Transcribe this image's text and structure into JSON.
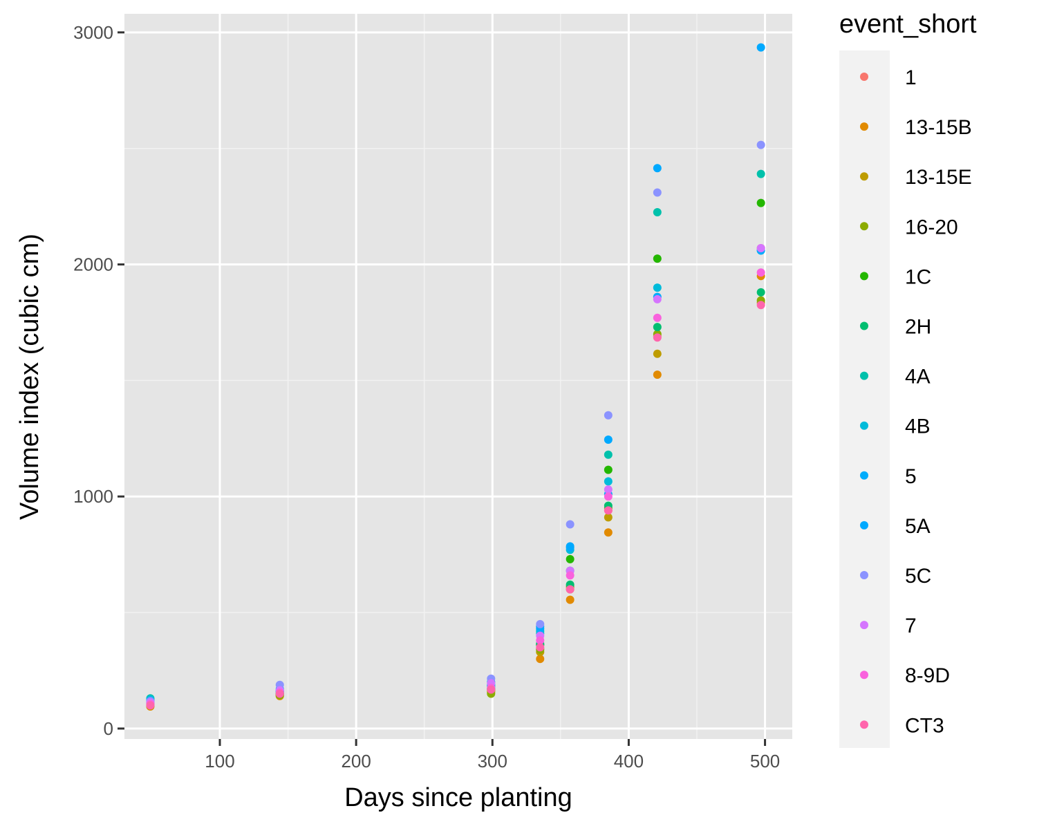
{
  "chart_data": {
    "type": "scatter",
    "xlabel": "Days since planting",
    "ylabel": "Volume index (cubic cm)",
    "xlim": [
      30,
      520
    ],
    "ylim": [
      -45,
      3080
    ],
    "x_ticks": [
      100,
      200,
      300,
      400,
      500
    ],
    "y_ticks": [
      0,
      1000,
      2000,
      3000
    ],
    "x_minor_grid": [
      150,
      250,
      350,
      450
    ],
    "y_minor_grid": [
      500,
      1500,
      2500
    ],
    "grid": true,
    "legend": {
      "title": "event_short",
      "position": "right"
    },
    "series": [
      {
        "name": "1",
        "color": "#F8766D",
        "points": [
          [
            49,
            100
          ],
          [
            144,
            148
          ],
          [
            299,
            165
          ],
          [
            335,
            345
          ],
          [
            357,
            615
          ],
          [
            385,
            940
          ],
          [
            421,
            1690
          ],
          [
            497,
            2070
          ]
        ]
      },
      {
        "name": "13-15B",
        "color": "#E18A00",
        "points": [
          [
            49,
            95
          ],
          [
            144,
            140
          ],
          [
            299,
            158
          ],
          [
            335,
            300
          ],
          [
            357,
            555
          ],
          [
            385,
            845
          ],
          [
            421,
            1525
          ],
          [
            497,
            1950
          ]
        ]
      },
      {
        "name": "13-15E",
        "color": "#BE9C00",
        "points": [
          [
            49,
            98
          ],
          [
            144,
            142
          ],
          [
            299,
            162
          ],
          [
            335,
            330
          ],
          [
            357,
            600
          ],
          [
            385,
            910
          ],
          [
            421,
            1615
          ],
          [
            497,
            1835
          ]
        ]
      },
      {
        "name": "16-20",
        "color": "#8CAB00",
        "points": [
          [
            49,
            102
          ],
          [
            144,
            145
          ],
          [
            299,
            150
          ],
          [
            335,
            340
          ],
          [
            357,
            610
          ],
          [
            385,
            950
          ],
          [
            421,
            1700
          ],
          [
            497,
            1845
          ]
        ]
      },
      {
        "name": "1C",
        "color": "#24B700",
        "points": [
          [
            49,
            108
          ],
          [
            144,
            150
          ],
          [
            299,
            170
          ],
          [
            335,
            360
          ],
          [
            357,
            730
          ],
          [
            385,
            1115
          ],
          [
            421,
            2025
          ],
          [
            497,
            2265
          ]
        ]
      },
      {
        "name": "2H",
        "color": "#00BE70",
        "points": [
          [
            49,
            110
          ],
          [
            144,
            152
          ],
          [
            299,
            172
          ],
          [
            335,
            365
          ],
          [
            357,
            620
          ],
          [
            385,
            960
          ],
          [
            421,
            1730
          ],
          [
            497,
            1880
          ]
        ]
      },
      {
        "name": "4A",
        "color": "#00C1AB",
        "points": [
          [
            49,
            130
          ],
          [
            144,
            160
          ],
          [
            299,
            185
          ],
          [
            335,
            420
          ],
          [
            357,
            680
          ],
          [
            385,
            1180
          ],
          [
            421,
            2225
          ],
          [
            497,
            2390
          ]
        ]
      },
      {
        "name": "4B",
        "color": "#00BBDA",
        "points": [
          [
            49,
            125
          ],
          [
            144,
            158
          ],
          [
            299,
            180
          ],
          [
            335,
            410
          ],
          [
            357,
            770
          ],
          [
            385,
            1065
          ],
          [
            421,
            1900
          ],
          [
            497,
            2060
          ]
        ]
      },
      {
        "name": "5",
        "color": "#00ACFC",
        "points": [
          [
            49,
            115
          ],
          [
            144,
            162
          ],
          [
            299,
            190
          ],
          [
            335,
            430
          ],
          [
            357,
            780
          ],
          [
            385,
            1010
          ],
          [
            421,
            1860
          ],
          [
            497,
            2060
          ]
        ]
      },
      {
        "name": "5A",
        "color": "#00A9FF",
        "points": [
          [
            49,
            120
          ],
          [
            144,
            170
          ],
          [
            299,
            200
          ],
          [
            335,
            440
          ],
          [
            357,
            785
          ],
          [
            385,
            1245
          ],
          [
            421,
            2415
          ],
          [
            497,
            2935
          ]
        ]
      },
      {
        "name": "5C",
        "color": "#8B93FF",
        "points": [
          [
            49,
            118
          ],
          [
            144,
            188
          ],
          [
            299,
            215
          ],
          [
            335,
            450
          ],
          [
            357,
            880
          ],
          [
            385,
            1350
          ],
          [
            421,
            2310
          ],
          [
            497,
            2515
          ]
        ]
      },
      {
        "name": "7",
        "color": "#D575FE",
        "points": [
          [
            49,
            112
          ],
          [
            144,
            165
          ],
          [
            299,
            195
          ],
          [
            335,
            400
          ],
          [
            357,
            680
          ],
          [
            385,
            1030
          ],
          [
            421,
            1850
          ],
          [
            497,
            2070
          ]
        ]
      },
      {
        "name": "8-9D",
        "color": "#F962DD",
        "points": [
          [
            49,
            105
          ],
          [
            144,
            155
          ],
          [
            299,
            175
          ],
          [
            335,
            380
          ],
          [
            357,
            660
          ],
          [
            385,
            1000
          ],
          [
            421,
            1770
          ],
          [
            497,
            1965
          ]
        ]
      },
      {
        "name": "CT3",
        "color": "#FF65AC",
        "points": [
          [
            49,
            100
          ],
          [
            144,
            150
          ],
          [
            299,
            168
          ],
          [
            335,
            350
          ],
          [
            357,
            600
          ],
          [
            385,
            940
          ],
          [
            421,
            1685
          ],
          [
            497,
            1825
          ]
        ]
      }
    ]
  }
}
